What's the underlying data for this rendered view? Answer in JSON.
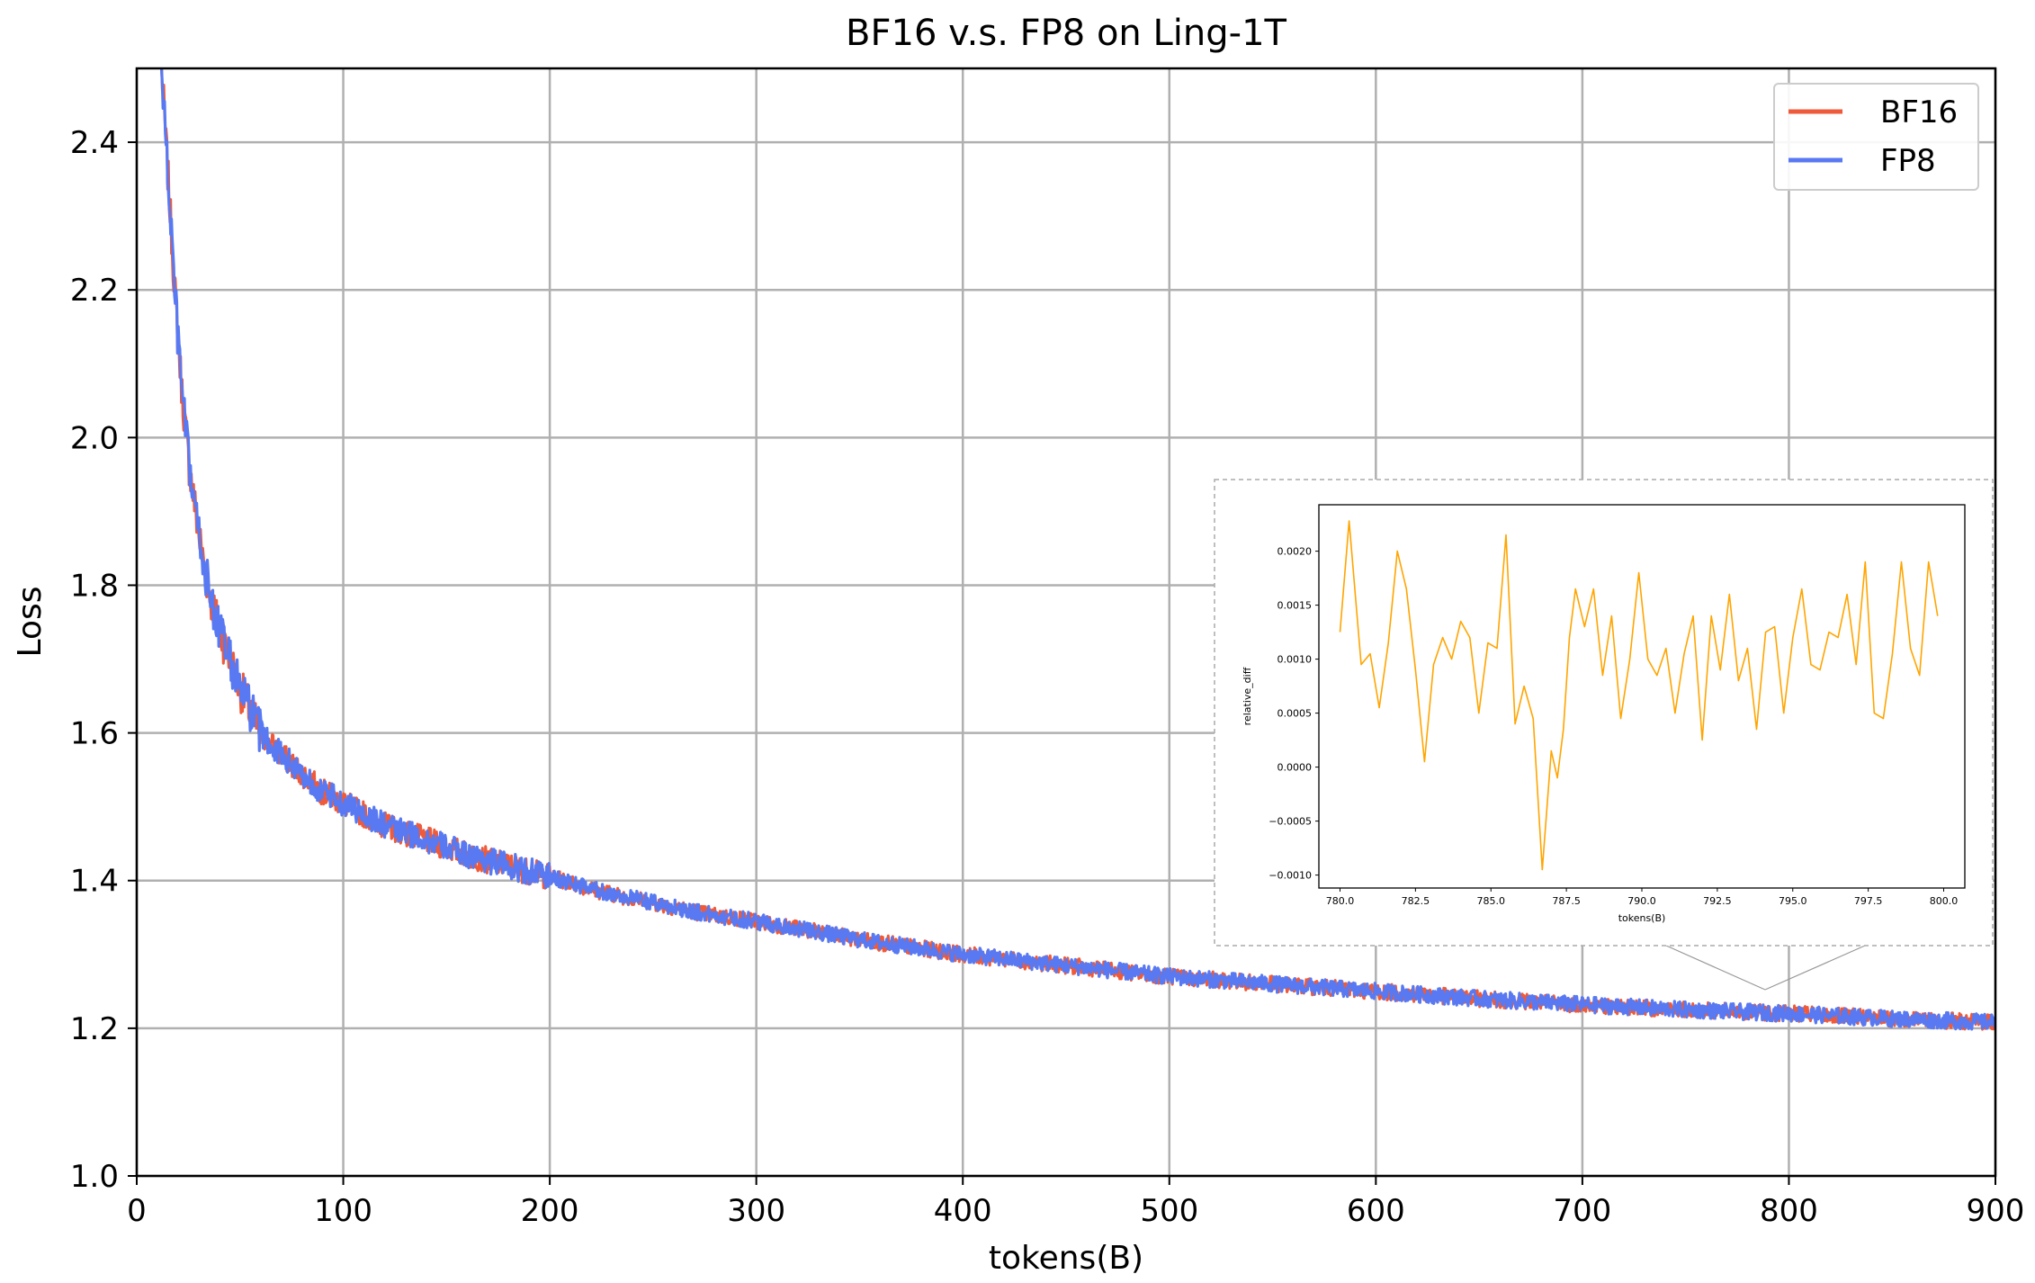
{
  "chart_data": [
    {
      "type": "line",
      "title": "BF16 v.s. FP8 on Ling-1T",
      "xlabel": "tokens(B)",
      "ylabel": "Loss",
      "xlim": [
        0,
        900
      ],
      "ylim": [
        1.0,
        2.5
      ],
      "x_ticks": [
        "0",
        "100",
        "200",
        "300",
        "400",
        "500",
        "600",
        "700",
        "800",
        "900"
      ],
      "y_ticks": [
        "1.0",
        "1.2",
        "1.4",
        "1.6",
        "1.8",
        "2.0",
        "2.2",
        "2.4"
      ],
      "grid": true,
      "legend_position": "top-right",
      "series": [
        {
          "name": "BF16",
          "color": "#ee5a3a",
          "x": [
            12,
            15,
            18,
            20,
            22,
            25,
            28,
            30,
            33,
            36,
            40,
            45,
            50,
            55,
            60,
            70,
            80,
            90,
            100,
            110,
            120,
            140,
            160,
            180,
            200,
            225,
            250,
            275,
            300,
            350,
            400,
            450,
            500,
            550,
            600,
            650,
            700,
            750,
            800,
            850,
            900
          ],
          "y": [
            2.5,
            2.36,
            2.22,
            2.13,
            2.06,
            1.97,
            1.91,
            1.87,
            1.82,
            1.78,
            1.74,
            1.7,
            1.66,
            1.63,
            1.6,
            1.57,
            1.545,
            1.52,
            1.505,
            1.49,
            1.475,
            1.455,
            1.435,
            1.42,
            1.405,
            1.385,
            1.37,
            1.355,
            1.345,
            1.32,
            1.3,
            1.285,
            1.27,
            1.26,
            1.25,
            1.24,
            1.232,
            1.225,
            1.22,
            1.213,
            1.208
          ]
        },
        {
          "name": "FP8",
          "color": "#5879f2",
          "x": [
            12,
            15,
            18,
            20,
            22,
            25,
            28,
            30,
            33,
            36,
            40,
            45,
            50,
            55,
            60,
            70,
            80,
            90,
            100,
            110,
            120,
            140,
            160,
            180,
            200,
            225,
            250,
            275,
            300,
            350,
            400,
            450,
            500,
            550,
            600,
            650,
            700,
            750,
            800,
            850,
            900
          ],
          "y": [
            2.5,
            2.36,
            2.22,
            2.13,
            2.06,
            1.97,
            1.91,
            1.87,
            1.82,
            1.78,
            1.74,
            1.7,
            1.66,
            1.63,
            1.6,
            1.57,
            1.545,
            1.52,
            1.505,
            1.49,
            1.475,
            1.455,
            1.435,
            1.42,
            1.405,
            1.385,
            1.37,
            1.355,
            1.345,
            1.32,
            1.3,
            1.285,
            1.27,
            1.26,
            1.25,
            1.24,
            1.232,
            1.225,
            1.22,
            1.213,
            1.208
          ]
        }
      ]
    },
    {
      "type": "line",
      "title": "",
      "xlabel": "tokens(B)",
      "ylabel": "relative_diff",
      "xlim": [
        779.3,
        800.7
      ],
      "ylim": [
        -0.00112,
        0.00243
      ],
      "x_ticks": [
        "780.0",
        "782.5",
        "785.0",
        "787.5",
        "790.0",
        "792.5",
        "795.0",
        "797.5",
        "800.0"
      ],
      "y_ticks": [
        "−0.0010",
        "−0.0005",
        "0.0000",
        "0.0005",
        "0.0010",
        "0.0015",
        "0.0020"
      ],
      "grid": false,
      "series": [
        {
          "color": "#ffa500",
          "x": [
            780.0,
            780.3,
            780.7,
            781.0,
            781.3,
            781.6,
            781.9,
            782.2,
            782.5,
            782.8,
            783.1,
            783.4,
            783.7,
            784.0,
            784.3,
            784.6,
            784.9,
            785.2,
            785.5,
            785.8,
            786.1,
            786.4,
            786.7,
            787.0,
            787.2,
            787.4,
            787.6,
            787.8,
            788.1,
            788.4,
            788.7,
            789.0,
            789.3,
            789.6,
            789.9,
            790.2,
            790.5,
            790.8,
            791.1,
            791.4,
            791.7,
            792.0,
            792.3,
            792.6,
            792.9,
            793.2,
            793.5,
            793.8,
            794.1,
            794.4,
            794.7,
            795.0,
            795.3,
            795.6,
            795.9,
            796.2,
            796.5,
            796.8,
            797.1,
            797.4,
            797.7,
            798.0,
            798.3,
            798.6,
            798.9,
            799.2,
            799.5,
            799.8
          ],
          "y": [
            0.00125,
            0.00228,
            0.00095,
            0.00105,
            0.00055,
            0.00115,
            0.002,
            0.00165,
            0.0009,
            5e-05,
            0.00095,
            0.0012,
            0.001,
            0.00135,
            0.0012,
            0.0005,
            0.00115,
            0.0011,
            0.00215,
            0.0004,
            0.00075,
            0.00045,
            -0.00095,
            0.00015,
            -0.0001,
            0.00035,
            0.0012,
            0.00165,
            0.0013,
            0.00165,
            0.00085,
            0.0014,
            0.00045,
            0.001,
            0.0018,
            0.001,
            0.00085,
            0.0011,
            0.0005,
            0.00105,
            0.0014,
            0.00025,
            0.0014,
            0.0009,
            0.0016,
            0.0008,
            0.0011,
            0.00035,
            0.00125,
            0.0013,
            0.0005,
            0.0012,
            0.00165,
            0.00095,
            0.0009,
            0.00125,
            0.0012,
            0.0016,
            0.00095,
            0.0019,
            0.0005,
            0.00045,
            0.00105,
            0.0019,
            0.0011,
            0.00085,
            0.0019,
            0.0014
          ]
        }
      ]
    }
  ],
  "legend": {
    "entries": [
      {
        "label": "BF16",
        "color": "#ee5a3a"
      },
      {
        "label": "FP8",
        "color": "#5879f2"
      }
    ]
  }
}
